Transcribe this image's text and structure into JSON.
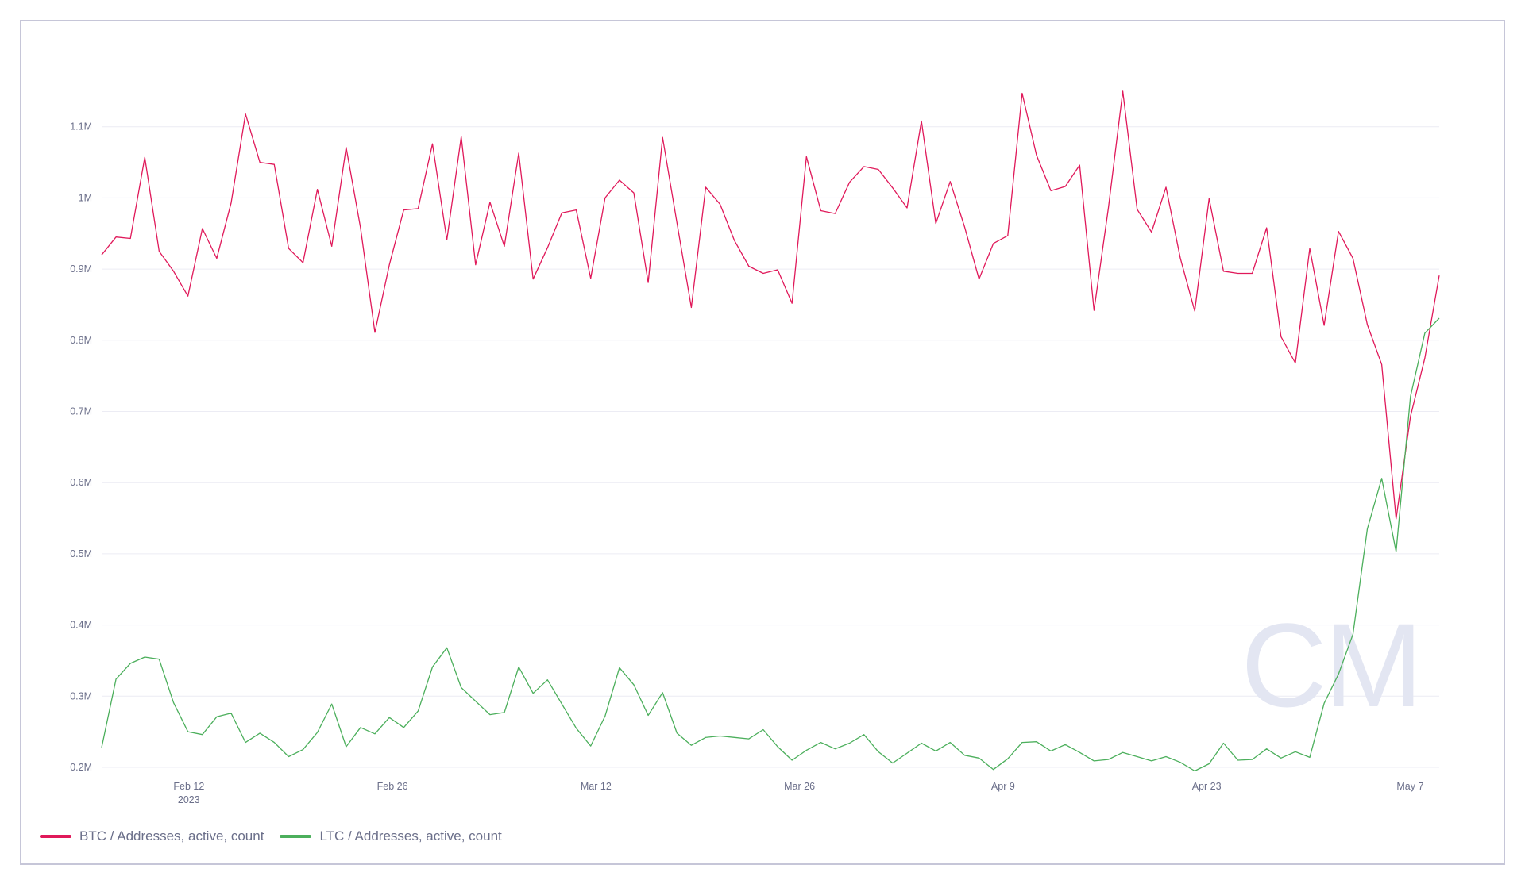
{
  "colors": {
    "btc": "#e0195a",
    "ltc": "#4caf5c",
    "grid": "#ececf4",
    "watermark": "#e3e6f2"
  },
  "watermark": {
    "text": "CM"
  },
  "chart_data": {
    "type": "line",
    "title": "",
    "xlabel": "",
    "ylabel": "",
    "ylim": [
      200000,
      1200000
    ],
    "yticks": [
      {
        "value": 200000,
        "label": "0.2M"
      },
      {
        "value": 300000,
        "label": "0.3M"
      },
      {
        "value": 400000,
        "label": "0.4M"
      },
      {
        "value": 500000,
        "label": "0.5M"
      },
      {
        "value": 600000,
        "label": "0.6M"
      },
      {
        "value": 700000,
        "label": "0.7M"
      },
      {
        "value": 800000,
        "label": "0.8M"
      },
      {
        "value": 900000,
        "label": "0.9M"
      },
      {
        "value": 1000000,
        "label": "1M"
      },
      {
        "value": 1100000,
        "label": "1.1M"
      }
    ],
    "xrange": [
      "2023-02-06",
      "2023-05-09"
    ],
    "xticks": [
      {
        "date": "2023-02-12",
        "label": "Feb 12",
        "sublabel": "2023"
      },
      {
        "date": "2023-02-26",
        "label": "Feb 26",
        "sublabel": ""
      },
      {
        "date": "2023-03-12",
        "label": "Mar 12",
        "sublabel": ""
      },
      {
        "date": "2023-03-26",
        "label": "Mar 26",
        "sublabel": ""
      },
      {
        "date": "2023-04-09",
        "label": "Apr 9",
        "sublabel": ""
      },
      {
        "date": "2023-04-23",
        "label": "Apr 23",
        "sublabel": ""
      },
      {
        "date": "2023-05-07",
        "label": "May 7",
        "sublabel": ""
      }
    ],
    "legend_position": "bottom-left",
    "grid": true,
    "series": [
      {
        "name": "BTC / Addresses, active, count",
        "color": "#e0195a",
        "values": [
          920000,
          945000,
          943000,
          1057000,
          925000,
          897000,
          862000,
          957000,
          915000,
          993000,
          1118000,
          1050000,
          1047000,
          929000,
          909000,
          1012000,
          932000,
          1071000,
          958000,
          811000,
          906000,
          983000,
          985000,
          1076000,
          941000,
          1086000,
          906000,
          994000,
          932000,
          1063000,
          886000,
          930000,
          979000,
          983000,
          887000,
          1000000,
          1025000,
          1007000,
          881000,
          1085000,
          965000,
          846000,
          1015000,
          991000,
          940000,
          904000,
          894000,
          899000,
          852000,
          1058000,
          982000,
          978000,
          1022000,
          1044000,
          1040000,
          1014000,
          986000,
          1108000,
          964000,
          1023000,
          959000,
          886000,
          936000,
          947000,
          1147000,
          1060000,
          1010000,
          1016000,
          1046000,
          842000,
          986000,
          1150000,
          984000,
          952000,
          1015000,
          915000,
          841000,
          999000,
          897000,
          894000,
          894000,
          958000,
          805000,
          768000,
          929000,
          821000,
          953000,
          915000,
          822000,
          766000,
          549000,
          693000,
          775000,
          891000
        ]
      },
      {
        "name": "LTC / Addresses, active, count",
        "color": "#4caf5c",
        "values": [
          228000,
          324000,
          346000,
          355000,
          352000,
          291000,
          250000,
          246000,
          271000,
          276000,
          235000,
          248000,
          235000,
          215000,
          225000,
          249000,
          289000,
          229000,
          256000,
          247000,
          270000,
          256000,
          279000,
          341000,
          368000,
          312000,
          293000,
          274000,
          277000,
          341000,
          304000,
          323000,
          289000,
          255000,
          230000,
          272000,
          340000,
          316000,
          273000,
          305000,
          248000,
          231000,
          242000,
          244000,
          242000,
          240000,
          253000,
          229000,
          210000,
          224000,
          235000,
          226000,
          234000,
          246000,
          222000,
          206000,
          220000,
          234000,
          223000,
          235000,
          217000,
          213000,
          197000,
          212000,
          235000,
          236000,
          223000,
          232000,
          221000,
          209000,
          211000,
          221000,
          215000,
          209000,
          215000,
          207000,
          195000,
          205000,
          234000,
          210000,
          211000,
          226000,
          213000,
          222000,
          214000,
          290000,
          331000,
          387000,
          535000,
          606000,
          503000,
          721000,
          810000,
          831000
        ]
      }
    ]
  }
}
